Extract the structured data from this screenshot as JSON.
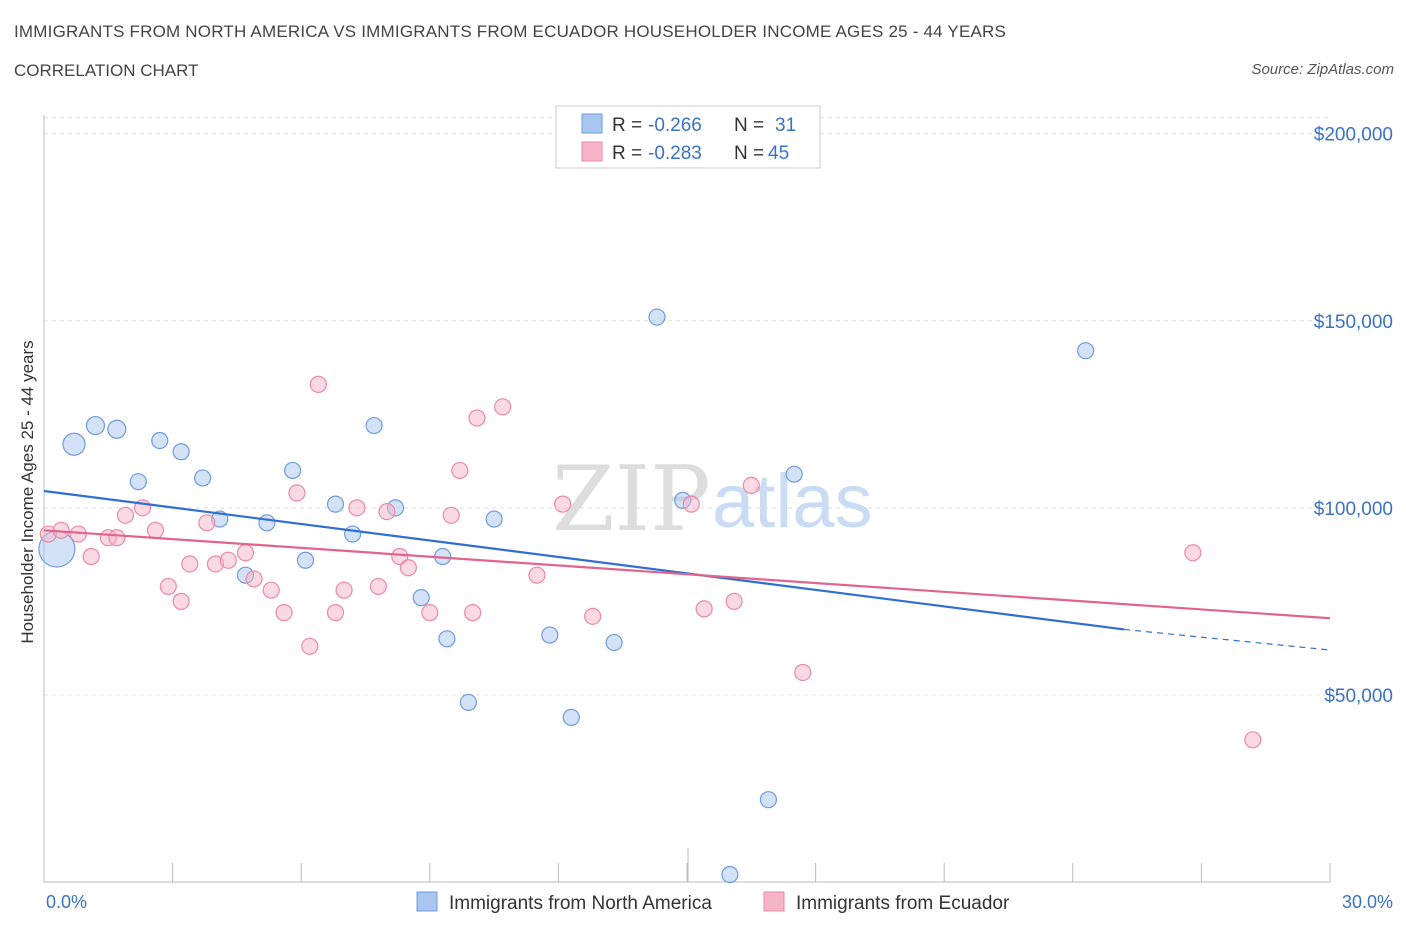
{
  "header": {
    "title": "IMMIGRANTS FROM NORTH AMERICA VS IMMIGRANTS FROM ECUADOR HOUSEHOLDER INCOME AGES 25 - 44 YEARS",
    "subtitle": "CORRELATION CHART",
    "source": "Source: ZipAtlas.com"
  },
  "watermark": {
    "zip": "ZIP",
    "atlas": "atlas"
  },
  "legend": {
    "r_label": "R =",
    "n_label": "N =",
    "rows": [
      {
        "r": "-0.266",
        "n": "31",
        "color": "#a9c6f0"
      },
      {
        "r": "-0.283",
        "n": "45",
        "color": "#f5b4c8"
      }
    ]
  },
  "chart_data": {
    "type": "scatter",
    "ylabel": "Householder Income Ages 25 - 44 years",
    "xlim": [
      0,
      30
    ],
    "ylim": [
      0,
      205000
    ],
    "x_tick_labels": [
      "0.0%",
      "30.0%"
    ],
    "y_ticks": [
      {
        "value": 50000,
        "label": "$50,000"
      },
      {
        "value": 100000,
        "label": "$100,000"
      },
      {
        "value": 150000,
        "label": "$150,000"
      },
      {
        "value": 200000,
        "label": "$200,000"
      }
    ],
    "grid": true,
    "legend_position": "top-center",
    "series": [
      {
        "name": "Immigrants from North America",
        "color": "#a9c6f0",
        "stroke": "#6f9be0",
        "line_color": "#2f6fd1",
        "trend": {
          "x0": 0,
          "y0": 104500,
          "x1": 25.2,
          "y1": 67500,
          "dash_to_x": 30,
          "dash_to_y": 62000
        },
        "points": [
          [
            0.3,
            89000,
            18
          ],
          [
            0.7,
            117000,
            11
          ],
          [
            1.2,
            122000,
            9
          ],
          [
            1.7,
            121000,
            9
          ],
          [
            2.2,
            107000,
            8
          ],
          [
            2.7,
            118000,
            8
          ],
          [
            3.2,
            115000,
            8
          ],
          [
            3.7,
            108000,
            8
          ],
          [
            4.1,
            97000,
            8
          ],
          [
            4.7,
            82000,
            8
          ],
          [
            5.2,
            96000,
            8
          ],
          [
            5.8,
            110000,
            8
          ],
          [
            6.1,
            86000,
            8
          ],
          [
            6.8,
            101000,
            8
          ],
          [
            7.2,
            93000,
            8
          ],
          [
            7.7,
            122000,
            8
          ],
          [
            8.2,
            100000,
            8
          ],
          [
            8.8,
            76000,
            8
          ],
          [
            9.3,
            87000,
            8
          ],
          [
            9.4,
            65000,
            8
          ],
          [
            9.9,
            48000,
            8
          ],
          [
            10.5,
            97000,
            8
          ],
          [
            11.8,
            66000,
            8
          ],
          [
            12.3,
            44000,
            8
          ],
          [
            13.3,
            64000,
            8
          ],
          [
            14.3,
            151000,
            8
          ],
          [
            14.9,
            102000,
            8
          ],
          [
            16.9,
            22000,
            8
          ],
          [
            17.5,
            109000,
            8
          ],
          [
            16.0,
            2000,
            8
          ],
          [
            24.3,
            142000,
            8
          ]
        ]
      },
      {
        "name": "Immigrants from Ecuador",
        "color": "#f5b4c8",
        "stroke": "#e98aa8",
        "line_color": "#e0648d",
        "trend": {
          "x0": 0,
          "y0": 94000,
          "x1": 30,
          "y1": 70500
        },
        "points": [
          [
            0.1,
            93000,
            8
          ],
          [
            0.4,
            94000,
            8
          ],
          [
            0.8,
            93000,
            8
          ],
          [
            1.1,
            87000,
            8
          ],
          [
            1.5,
            92000,
            8
          ],
          [
            1.7,
            92000,
            8
          ],
          [
            1.9,
            98000,
            8
          ],
          [
            2.3,
            100000,
            8
          ],
          [
            2.6,
            94000,
            8
          ],
          [
            2.9,
            79000,
            8
          ],
          [
            3.2,
            75000,
            8
          ],
          [
            3.4,
            85000,
            8
          ],
          [
            3.8,
            96000,
            8
          ],
          [
            4.0,
            85000,
            8
          ],
          [
            4.3,
            86000,
            8
          ],
          [
            4.7,
            88000,
            8
          ],
          [
            4.9,
            81000,
            8
          ],
          [
            5.3,
            78000,
            8
          ],
          [
            5.6,
            72000,
            8
          ],
          [
            5.9,
            104000,
            8
          ],
          [
            6.2,
            63000,
            8
          ],
          [
            6.4,
            133000,
            8
          ],
          [
            6.8,
            72000,
            8
          ],
          [
            7.0,
            78000,
            8
          ],
          [
            7.3,
            100000,
            8
          ],
          [
            7.8,
            79000,
            8
          ],
          [
            8.0,
            99000,
            8
          ],
          [
            8.3,
            87000,
            8
          ],
          [
            8.5,
            84000,
            8
          ],
          [
            9.0,
            72000,
            8
          ],
          [
            9.5,
            98000,
            8
          ],
          [
            9.7,
            110000,
            8
          ],
          [
            10.0,
            72000,
            8
          ],
          [
            10.1,
            124000,
            8
          ],
          [
            10.7,
            127000,
            8
          ],
          [
            11.5,
            82000,
            8
          ],
          [
            12.1,
            101000,
            8
          ],
          [
            12.8,
            71000,
            8
          ],
          [
            15.1,
            101000,
            8
          ],
          [
            15.4,
            73000,
            8
          ],
          [
            16.1,
            75000,
            8
          ],
          [
            16.5,
            106000,
            8
          ],
          [
            17.7,
            56000,
            8
          ],
          [
            26.8,
            88000,
            8
          ],
          [
            28.2,
            38000,
            8
          ]
        ]
      }
    ]
  }
}
